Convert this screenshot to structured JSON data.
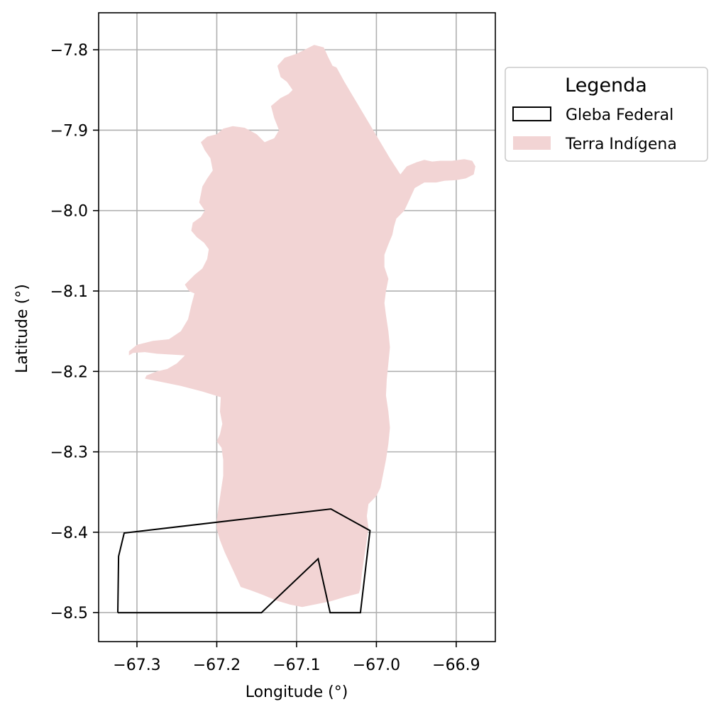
{
  "chart_data": {
    "type": "map",
    "xlabel": "Longitude (°)",
    "ylabel": "Latitude (°)",
    "xlim": [
      -67.348,
      -66.851
    ],
    "ylim": [
      -8.536,
      -7.754
    ],
    "xticks": [
      -67.3,
      -67.2,
      -67.1,
      -67.0,
      -66.9
    ],
    "xtick_labels": [
      "−67.3",
      "−67.2",
      "−67.1",
      "−67.0",
      "−66.9"
    ],
    "yticks": [
      -7.8,
      -7.9,
      -8.0,
      -8.1,
      -8.2,
      -8.3,
      -8.4,
      -8.5
    ],
    "ytick_labels": [
      "−7.8",
      "−7.9",
      "−8.0",
      "−8.1",
      "−8.2",
      "−8.3",
      "−8.4",
      "−8.5"
    ],
    "grid": true,
    "legend": {
      "title": "Legenda",
      "placement": "outside-upper-right",
      "entries": [
        {
          "label": "Gleba Federal",
          "style": "outline",
          "color": "#000000"
        },
        {
          "label": "Terra Indígena",
          "style": "fill",
          "color": "#f2d4d4"
        }
      ]
    },
    "layers": [
      {
        "name": "Terra Indígena",
        "kind": "polygon",
        "fill": "#f2d4d4",
        "coordinates": [
          [
            -67.078,
            -7.794
          ],
          [
            -67.066,
            -7.797
          ],
          [
            -67.06,
            -7.81
          ],
          [
            -67.055,
            -7.82
          ],
          [
            -67.05,
            -7.822
          ],
          [
            -67.04,
            -7.84
          ],
          [
            -67.025,
            -7.865
          ],
          [
            -67.01,
            -7.89
          ],
          [
            -66.995,
            -7.915
          ],
          [
            -66.983,
            -7.935
          ],
          [
            -66.97,
            -7.955
          ],
          [
            -66.962,
            -7.945
          ],
          [
            -66.95,
            -7.94
          ],
          [
            -66.94,
            -7.937
          ],
          [
            -66.93,
            -7.939
          ],
          [
            -66.92,
            -7.938
          ],
          [
            -66.905,
            -7.938
          ],
          [
            -66.89,
            -7.936
          ],
          [
            -66.88,
            -7.938
          ],
          [
            -66.876,
            -7.945
          ],
          [
            -66.878,
            -7.955
          ],
          [
            -66.888,
            -7.96
          ],
          [
            -66.9,
            -7.962
          ],
          [
            -66.915,
            -7.963
          ],
          [
            -66.925,
            -7.965
          ],
          [
            -66.94,
            -7.965
          ],
          [
            -66.952,
            -7.972
          ],
          [
            -66.958,
            -7.985
          ],
          [
            -66.965,
            -8.0
          ],
          [
            -66.975,
            -8.01
          ],
          [
            -66.978,
            -8.02
          ],
          [
            -66.98,
            -8.03
          ],
          [
            -66.985,
            -8.042
          ],
          [
            -66.99,
            -8.055
          ],
          [
            -66.99,
            -8.07
          ],
          [
            -66.985,
            -8.085
          ],
          [
            -66.988,
            -8.1
          ],
          [
            -66.99,
            -8.115
          ],
          [
            -66.988,
            -8.13
          ],
          [
            -66.985,
            -8.15
          ],
          [
            -66.983,
            -8.17
          ],
          [
            -66.985,
            -8.19
          ],
          [
            -66.987,
            -8.21
          ],
          [
            -66.988,
            -8.23
          ],
          [
            -66.985,
            -8.25
          ],
          [
            -66.983,
            -8.27
          ],
          [
            -66.985,
            -8.29
          ],
          [
            -66.988,
            -8.31
          ],
          [
            -66.992,
            -8.33
          ],
          [
            -66.995,
            -8.345
          ],
          [
            -67.0,
            -8.355
          ],
          [
            -67.01,
            -8.365
          ],
          [
            -67.012,
            -8.38
          ],
          [
            -67.01,
            -8.395
          ],
          [
            -67.012,
            -8.41
          ],
          [
            -67.015,
            -8.43
          ],
          [
            -67.018,
            -8.45
          ],
          [
            -67.02,
            -8.47
          ],
          [
            -67.022,
            -8.476
          ],
          [
            -67.038,
            -8.48
          ],
          [
            -67.058,
            -8.486
          ],
          [
            -67.078,
            -8.49
          ],
          [
            -67.093,
            -8.493
          ],
          [
            -67.108,
            -8.49
          ],
          [
            -67.125,
            -8.485
          ],
          [
            -67.142,
            -8.478
          ],
          [
            -67.158,
            -8.472
          ],
          [
            -67.17,
            -8.468
          ],
          [
            -67.176,
            -8.455
          ],
          [
            -67.183,
            -8.44
          ],
          [
            -67.19,
            -8.425
          ],
          [
            -67.196,
            -8.41
          ],
          [
            -67.2,
            -8.396
          ],
          [
            -67.2,
            -8.385
          ],
          [
            -67.198,
            -8.37
          ],
          [
            -67.195,
            -8.35
          ],
          [
            -67.192,
            -8.33
          ],
          [
            -67.192,
            -8.31
          ],
          [
            -67.194,
            -8.295
          ],
          [
            -67.2,
            -8.287
          ],
          [
            -67.196,
            -8.278
          ],
          [
            -67.193,
            -8.265
          ],
          [
            -67.196,
            -8.25
          ],
          [
            -67.195,
            -8.232
          ],
          [
            -67.218,
            -8.225
          ],
          [
            -67.245,
            -8.218
          ],
          [
            -67.27,
            -8.213
          ],
          [
            -67.29,
            -8.209
          ],
          [
            -67.288,
            -8.205
          ],
          [
            -67.275,
            -8.2
          ],
          [
            -67.262,
            -8.197
          ],
          [
            -67.25,
            -8.19
          ],
          [
            -67.24,
            -8.18
          ],
          [
            -67.275,
            -8.178
          ],
          [
            -67.29,
            -8.176
          ],
          [
            -67.305,
            -8.177
          ],
          [
            -67.31,
            -8.18
          ],
          [
            -67.31,
            -8.175
          ],
          [
            -67.3,
            -8.167
          ],
          [
            -67.28,
            -8.162
          ],
          [
            -67.26,
            -8.16
          ],
          [
            -67.245,
            -8.15
          ],
          [
            -67.236,
            -8.135
          ],
          [
            -67.232,
            -8.118
          ],
          [
            -67.228,
            -8.103
          ],
          [
            -67.235,
            -8.1
          ],
          [
            -67.24,
            -8.092
          ],
          [
            -67.228,
            -8.08
          ],
          [
            -67.218,
            -8.072
          ],
          [
            -67.212,
            -8.06
          ],
          [
            -67.21,
            -8.048
          ],
          [
            -67.216,
            -8.04
          ],
          [
            -67.225,
            -8.033
          ],
          [
            -67.232,
            -8.025
          ],
          [
            -67.23,
            -8.015
          ],
          [
            -67.22,
            -8.008
          ],
          [
            -67.215,
            -8.0
          ],
          [
            -67.222,
            -7.99
          ],
          [
            -67.218,
            -7.97
          ],
          [
            -67.212,
            -7.96
          ],
          [
            -67.205,
            -7.95
          ],
          [
            -67.208,
            -7.935
          ],
          [
            -67.215,
            -7.925
          ],
          [
            -67.22,
            -7.915
          ],
          [
            -67.212,
            -7.908
          ],
          [
            -67.2,
            -7.905
          ],
          [
            -67.192,
            -7.898
          ],
          [
            -67.18,
            -7.895
          ],
          [
            -67.165,
            -7.897
          ],
          [
            -67.15,
            -7.905
          ],
          [
            -67.14,
            -7.915
          ],
          [
            -67.128,
            -7.91
          ],
          [
            -67.122,
            -7.9
          ],
          [
            -67.128,
            -7.885
          ],
          [
            -67.132,
            -7.87
          ],
          [
            -67.12,
            -7.86
          ],
          [
            -67.11,
            -7.855
          ],
          [
            -67.105,
            -7.85
          ],
          [
            -67.112,
            -7.84
          ],
          [
            -67.12,
            -7.834
          ],
          [
            -67.124,
            -7.82
          ],
          [
            -67.115,
            -7.81
          ],
          [
            -67.1,
            -7.805
          ],
          [
            -67.09,
            -7.8
          ]
        ]
      },
      {
        "name": "Gleba Federal",
        "kind": "polyline",
        "stroke": "#000000",
        "coordinates": [
          [
            -67.324,
            -8.5
          ],
          [
            -67.323,
            -8.43
          ],
          [
            -67.316,
            -8.401
          ],
          [
            -67.057,
            -8.371
          ],
          [
            -67.008,
            -8.398
          ],
          [
            -67.02,
            -8.5
          ],
          [
            -67.058,
            -8.5
          ],
          [
            -67.073,
            -8.433
          ],
          [
            -67.144,
            -8.5
          ],
          [
            -67.324,
            -8.5
          ]
        ]
      }
    ]
  }
}
